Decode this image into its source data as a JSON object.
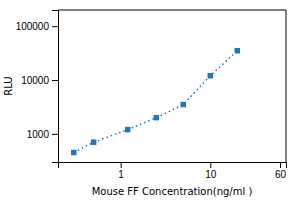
{
  "chart_data": {
    "type": "line",
    "x": [
      0.3,
      0.5,
      1.2,
      2.5,
      5.0,
      10.0,
      20.0
    ],
    "values": [
      450,
      700,
      1200,
      2000,
      3500,
      12000,
      35000
    ],
    "xlabel": "Mouse FF Concentration(ng/ml )",
    "ylabel": "RLU",
    "xlim": [
      0.2,
      70
    ],
    "ylim": [
      300,
      200000
    ],
    "xticks": [
      1,
      10,
      60
    ],
    "yticks": [
      1000,
      10000,
      100000
    ],
    "log": true,
    "grid": false,
    "marker": "square",
    "line_style": "dotted"
  }
}
